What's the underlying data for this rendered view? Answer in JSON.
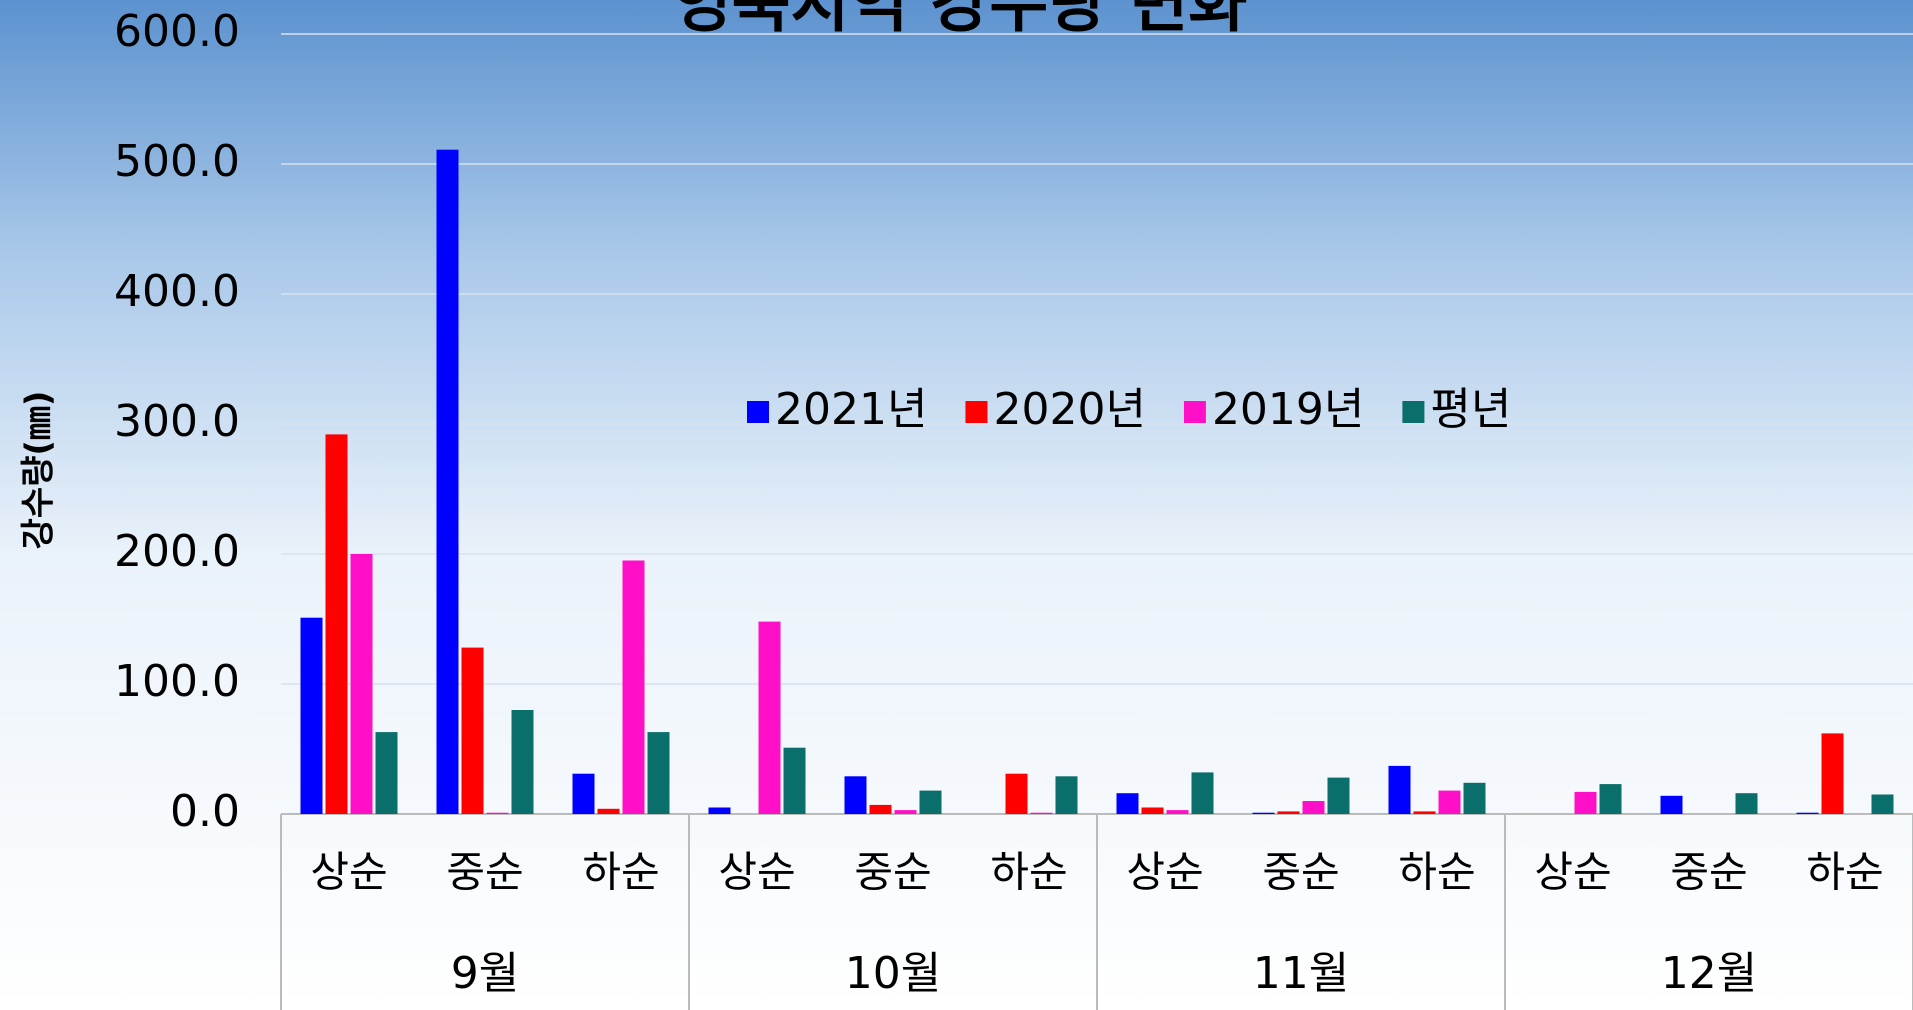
{
  "chart_data": {
    "type": "bar",
    "title": "영북지역 강수량 변화",
    "y_label": "강수량(㎜)",
    "categories": [
      "상순",
      "중순",
      "하순",
      "상순",
      "중순",
      "하순",
      "상순",
      "중순",
      "하순",
      "상순",
      "중순",
      "하순"
    ],
    "groups": [
      "9월",
      "10월",
      "11월",
      "12월"
    ],
    "series": [
      {
        "name": "2021년",
        "color": "#0000ff",
        "values": [
          151,
          511,
          31,
          5,
          29,
          0,
          16,
          1,
          37,
          0,
          14,
          1
        ]
      },
      {
        "name": "2020년",
        "color": "#ff0000",
        "values": [
          292,
          128,
          4,
          0,
          7,
          31,
          5,
          2,
          2,
          0,
          0,
          62
        ]
      },
      {
        "name": "2019년",
        "color": "#ff10c8",
        "values": [
          200,
          1,
          195,
          148,
          3,
          1,
          3,
          10,
          18,
          17,
          0,
          0
        ]
      },
      {
        "name": "평년",
        "color": "#0a6e6a",
        "values": [
          63,
          80,
          63,
          51,
          18,
          29,
          32,
          28,
          24,
          23,
          16,
          15
        ]
      }
    ],
    "ylim": [
      0,
      600
    ],
    "yticks": [
      {
        "value": 0,
        "label": "0.0"
      },
      {
        "value": 100,
        "label": "100.0"
      },
      {
        "value": 200,
        "label": "200.0"
      },
      {
        "value": 300,
        "label": "300.0"
      },
      {
        "value": 400,
        "label": "400.0"
      },
      {
        "value": 500,
        "label": "500.0"
      },
      {
        "value": 600,
        "label": "600.0"
      }
    ],
    "grid": true,
    "legend": "center"
  }
}
